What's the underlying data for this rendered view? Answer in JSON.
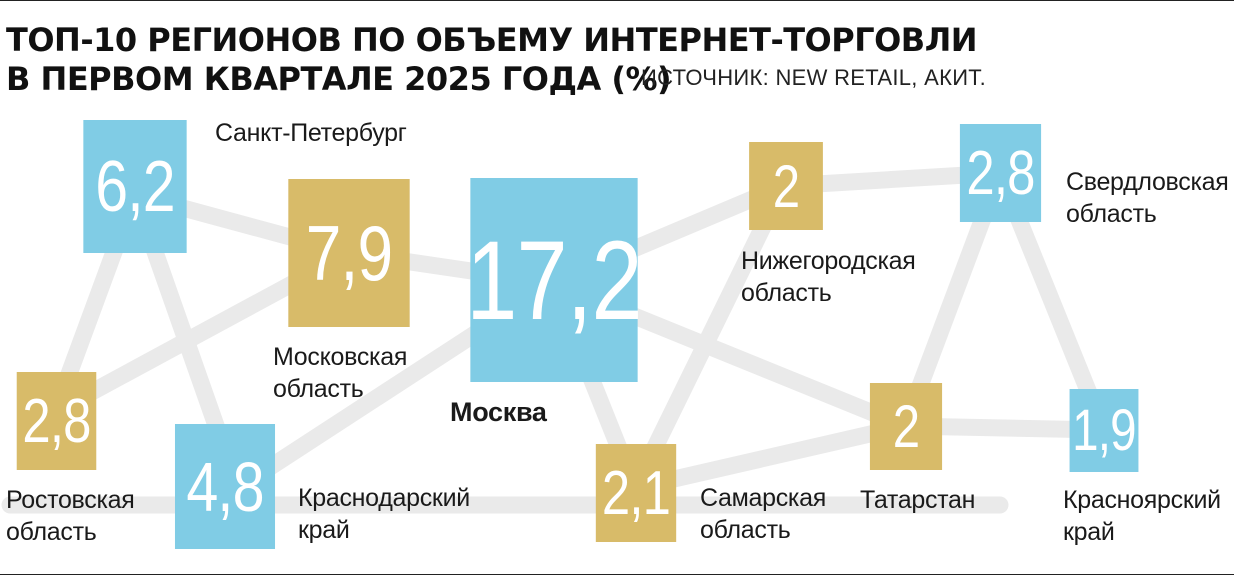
{
  "title": {
    "line1": "ТОП-10 РЕГИОНОВ ПО ОБЪЕМУ ИНТЕРНЕТ-ТОРГОВЛИ",
    "line2": "В ПЕРВОМ КВАРТАЛЕ 2025 ГОДА (%)"
  },
  "source": "ИСТОЧНИК: NEW RETAIL, АКИТ.",
  "colors": {
    "blue": "#80CCE5",
    "gold": "#D8BB69",
    "network": "#EAEAEA"
  },
  "regions": [
    {
      "id": "spb",
      "value": "6,2",
      "name1": "Санкт-Петербург",
      "name2": "",
      "color": "blue"
    },
    {
      "id": "mo",
      "value": "7,9",
      "name1": "Московская",
      "name2": "область",
      "color": "gold"
    },
    {
      "id": "msk",
      "value": "17,2",
      "name1": "Москва",
      "name2": "",
      "color": "blue"
    },
    {
      "id": "nn",
      "value": "2",
      "name1": "Нижегородская",
      "name2": "область",
      "color": "gold"
    },
    {
      "id": "sv",
      "value": "2,8",
      "name1": "Свердловская",
      "name2": "область",
      "color": "blue"
    },
    {
      "id": "ro",
      "value": "2,8",
      "name1": "Ростовская",
      "name2": "область",
      "color": "gold"
    },
    {
      "id": "kd",
      "value": "4,8",
      "name1": "Краснодарский",
      "name2": "край",
      "color": "blue"
    },
    {
      "id": "sm",
      "value": "2,1",
      "name1": "Самарская",
      "name2": "область",
      "color": "gold"
    },
    {
      "id": "ta",
      "value": "2",
      "name1": "Татарстан",
      "name2": "",
      "color": "gold"
    },
    {
      "id": "kr",
      "value": "1,9",
      "name1": "Красноярский",
      "name2": "край",
      "color": "blue"
    }
  ]
}
